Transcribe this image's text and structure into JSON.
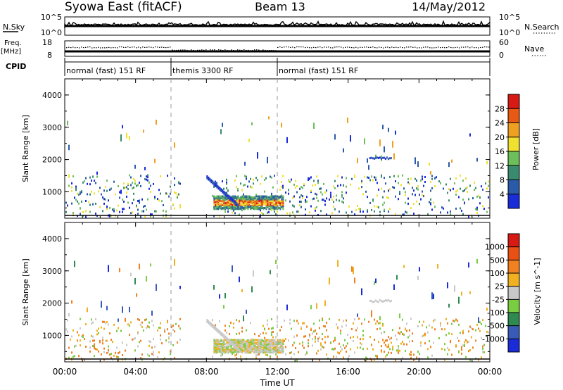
{
  "header": {
    "title_left": "Syowa East (fitACF)",
    "title_center": "Beam 13",
    "title_right": "14/May/2012"
  },
  "top_panels": {
    "noise_label": "N.Sky",
    "noise_ticks_left": [
      "10^5",
      "10^0"
    ],
    "noise_ticks_right": [
      "10^5",
      "10^0"
    ],
    "noise_search_label": "N.Search",
    "freq_label": "Freq.",
    "freq_unit": "[MHz]",
    "freq_ticks": [
      "18",
      "8"
    ],
    "nave_ticks": [
      "60",
      "0"
    ],
    "nave_label": "Nave",
    "cpid_label": "CPID",
    "cpid_segments": [
      {
        "label": "normal (fast) 151 RF",
        "start_h": 0,
        "end_h": 6
      },
      {
        "label": "themis 3300 RF",
        "start_h": 6,
        "end_h": 12
      },
      {
        "label": "normal (fast) 151 RF",
        "start_h": 12,
        "end_h": 24
      }
    ]
  },
  "chart_data": [
    {
      "type": "heatmap",
      "parameter": "power",
      "ylabel": "Slant Range [km]",
      "yticks": [
        "1000",
        "2000",
        "3000",
        "4000"
      ],
      "ylim": [
        180,
        4500
      ],
      "xlim": [
        0,
        24
      ],
      "colorbar_label": "Power [dB]",
      "colorbar_ticks": [
        "28",
        "24",
        "20",
        "16",
        "12",
        "8",
        "4"
      ],
      "colorbar_range": [
        0,
        30
      ],
      "colorbar_colors": [
        "#1a2bd8",
        "#2b5aa8",
        "#3a8a70",
        "#6cbf5a",
        "#f0e030",
        "#f0a020",
        "#e85a14",
        "#d81a14"
      ]
    },
    {
      "type": "heatmap",
      "parameter": "velocity",
      "ylabel": "Slant Range [km]",
      "yticks": [
        "1000",
        "2000",
        "3000",
        "4000"
      ],
      "ylim": [
        180,
        4500
      ],
      "xlim": [
        0,
        24
      ],
      "colorbar_label": "Velocity [m s^-1]",
      "colorbar_ticks": [
        "1000",
        "500",
        "100",
        "25",
        "-25",
        "-100",
        "-500",
        "-1000"
      ],
      "colorbar_colors": [
        "#1a2bd8",
        "#3a5ab8",
        "#2e8a50",
        "#7acc40",
        "#c8c8c8",
        "#f0b020",
        "#f08020",
        "#e85014",
        "#d81a14"
      ]
    }
  ],
  "x_axis": {
    "ticks": [
      "00:00",
      "04:00",
      "08:00",
      "12:00",
      "16:00",
      "20:00",
      "00:00"
    ],
    "label": "Time UT"
  }
}
